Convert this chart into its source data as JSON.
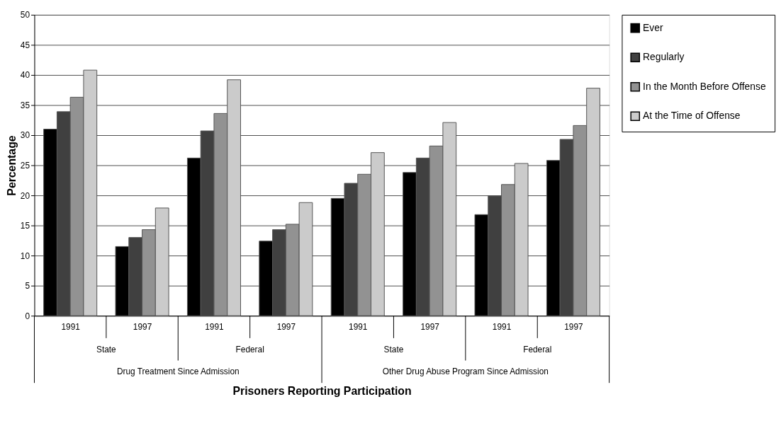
{
  "chart_data": {
    "type": "bar",
    "xlabel": "Prisoners Reporting Participation",
    "ylabel": "Percentage",
    "categories": [
      "1991",
      "1997",
      "1991",
      "1997",
      "1991",
      "1997",
      "1991",
      "1997"
    ],
    "series": [
      {
        "name": "Ever",
        "color": "#000000",
        "values": [
          31.0,
          11.5,
          26.2,
          12.4,
          19.5,
          23.8,
          16.8,
          25.8
        ]
      },
      {
        "name": "Regularly",
        "color": "#404040",
        "values": [
          33.9,
          13.0,
          30.7,
          14.3,
          22.0,
          26.2,
          19.9,
          29.3
        ]
      },
      {
        "name": "In the Month Before Offense",
        "color": "#929292",
        "values": [
          36.3,
          14.3,
          33.6,
          15.2,
          23.5,
          28.2,
          21.8,
          31.6
        ]
      },
      {
        "name": "At the Time of Offense",
        "color": "#cbcbcb",
        "values": [
          40.8,
          17.9,
          39.2,
          18.8,
          27.1,
          32.1,
          25.3,
          37.8
        ]
      }
    ],
    "annotations": [
      "State",
      "Federal",
      "State",
      "Federal",
      "Drug Treatment Since Admission",
      "Other Drug Abuse Program Since Admission"
    ],
    "ylim": [
      0,
      50
    ],
    "yticks": [
      0,
      5,
      10,
      15,
      20,
      25,
      30,
      35,
      40,
      45,
      50
    ],
    "grid": "y",
    "legend": "right"
  }
}
